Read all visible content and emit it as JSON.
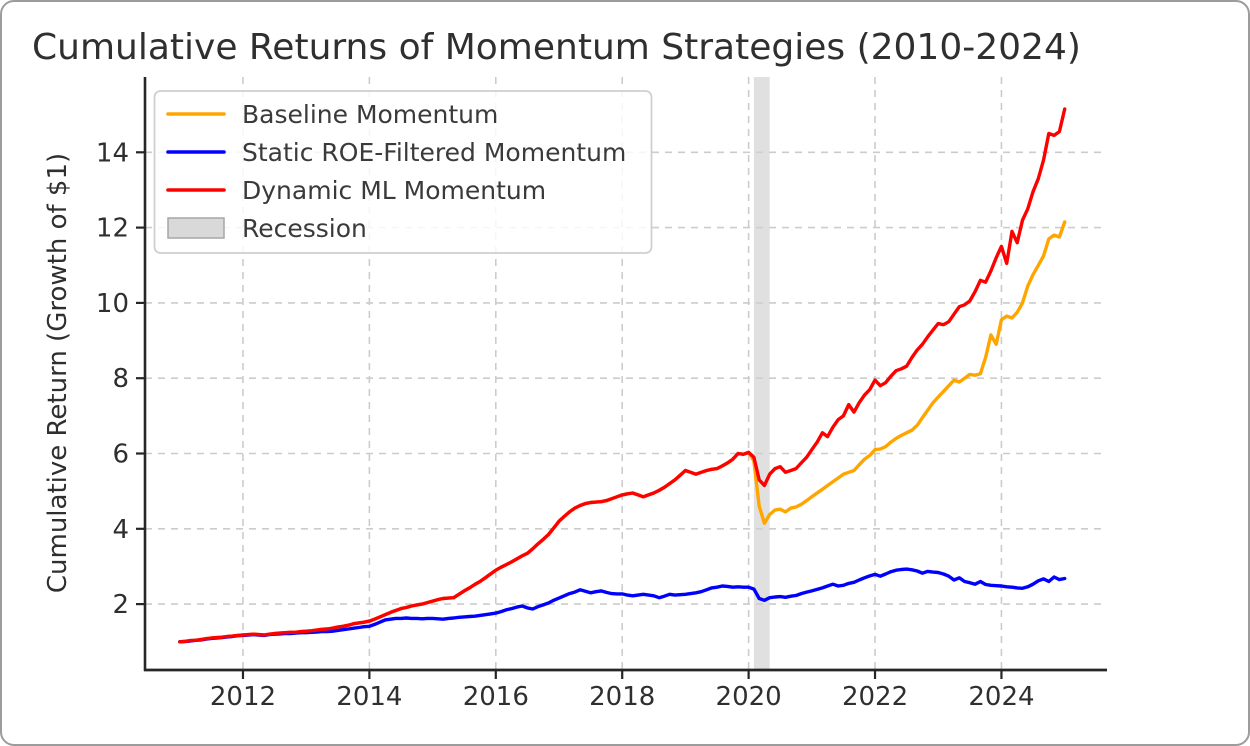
{
  "chart_data": {
    "type": "line",
    "title": "Cumulative Returns of Momentum Strategies (2010-2024)",
    "xlabel": "",
    "ylabel": "Cumulative Return (Growth of $1)",
    "x_unit": "year",
    "x_start": 2011.0,
    "x_step_years": 0.0833333,
    "xlim": [
      2010.45,
      2025.67
    ],
    "ylim": [
      0.25,
      16.0
    ],
    "x_ticks": [
      2012,
      2014,
      2016,
      2018,
      2020,
      2022,
      2024
    ],
    "y_ticks": [
      2,
      4,
      6,
      8,
      10,
      12,
      14
    ],
    "grid": true,
    "grid_style": "dashed",
    "grid_color": "#cccccc",
    "axis_color": "#262626",
    "text_color": "#2f2f2f",
    "legend_position": "upper left",
    "recession_band": {
      "label": "Recession",
      "x_from": 2020.083,
      "x_to": 2020.333,
      "color": "#cfcfcf"
    },
    "legend": [
      {
        "label": "Baseline Momentum",
        "type": "line",
        "color": "#FFA500"
      },
      {
        "label": "Static ROE-Filtered Momentum",
        "type": "line",
        "color": "#0000FF"
      },
      {
        "label": "Dynamic ML Momentum",
        "type": "line",
        "color": "#FF0000"
      },
      {
        "label": "Recession",
        "type": "patch",
        "color": "#d9d9d9",
        "edge_color": "#a6a6a6"
      }
    ],
    "series": [
      {
        "name": "Baseline Momentum",
        "slug": "baseline-momentum",
        "color": "#FFA500",
        "values": [
          1.0,
          1.01,
          1.03,
          1.04,
          1.06,
          1.08,
          1.1,
          1.11,
          1.12,
          1.14,
          1.15,
          1.17,
          1.18,
          1.19,
          1.2,
          1.19,
          1.18,
          1.2,
          1.22,
          1.23,
          1.24,
          1.25,
          1.25,
          1.27,
          1.28,
          1.29,
          1.31,
          1.33,
          1.34,
          1.36,
          1.39,
          1.41,
          1.44,
          1.48,
          1.5,
          1.52,
          1.55,
          1.6,
          1.66,
          1.72,
          1.78,
          1.83,
          1.88,
          1.91,
          1.95,
          1.98,
          2.0,
          2.04,
          2.08,
          2.12,
          2.15,
          2.16,
          2.17,
          2.26,
          2.35,
          2.43,
          2.52,
          2.6,
          2.7,
          2.8,
          2.9,
          2.98,
          3.05,
          3.12,
          3.2,
          3.28,
          3.35,
          3.47,
          3.6,
          3.72,
          3.85,
          4.02,
          4.2,
          4.33,
          4.45,
          4.55,
          4.62,
          4.67,
          4.7,
          4.71,
          4.72,
          4.75,
          4.8,
          4.85,
          4.9,
          4.93,
          4.95,
          4.9,
          4.85,
          4.9,
          4.95,
          5.02,
          5.1,
          5.2,
          5.3,
          5.42,
          5.55,
          5.5,
          5.45,
          5.5,
          5.55,
          5.58,
          5.6,
          5.67,
          5.75,
          5.85,
          6.0,
          5.98,
          6.03,
          5.8,
          4.6,
          4.15,
          4.38,
          4.5,
          4.52,
          4.45,
          4.55,
          4.58,
          4.65,
          4.75,
          4.85,
          4.95,
          5.05,
          5.15,
          5.25,
          5.35,
          5.45,
          5.5,
          5.55,
          5.7,
          5.85,
          5.95,
          6.1,
          6.12,
          6.18,
          6.3,
          6.4,
          6.48,
          6.55,
          6.62,
          6.75,
          6.95,
          7.15,
          7.35,
          7.5,
          7.65,
          7.8,
          7.95,
          7.9,
          8.0,
          8.1,
          8.08,
          8.12,
          8.55,
          9.15,
          8.9,
          9.55,
          9.65,
          9.6,
          9.75,
          10.0,
          10.45,
          10.75,
          11.0,
          11.25,
          11.7,
          11.8,
          11.75,
          12.15
        ]
      },
      {
        "name": "Static ROE-Filtered Momentum",
        "slug": "static-roe-filtered-momentum",
        "color": "#0000FF",
        "values": [
          1.0,
          1.01,
          1.02,
          1.04,
          1.05,
          1.07,
          1.09,
          1.1,
          1.11,
          1.13,
          1.14,
          1.16,
          1.17,
          1.18,
          1.19,
          1.18,
          1.17,
          1.19,
          1.2,
          1.21,
          1.22,
          1.22,
          1.23,
          1.24,
          1.24,
          1.25,
          1.26,
          1.27,
          1.27,
          1.28,
          1.3,
          1.32,
          1.34,
          1.36,
          1.38,
          1.4,
          1.41,
          1.46,
          1.52,
          1.58,
          1.6,
          1.62,
          1.62,
          1.63,
          1.62,
          1.62,
          1.61,
          1.62,
          1.62,
          1.61,
          1.6,
          1.62,
          1.63,
          1.65,
          1.66,
          1.67,
          1.68,
          1.7,
          1.72,
          1.74,
          1.76,
          1.8,
          1.85,
          1.88,
          1.92,
          1.95,
          1.9,
          1.87,
          1.93,
          1.98,
          2.03,
          2.1,
          2.16,
          2.22,
          2.28,
          2.32,
          2.38,
          2.34,
          2.3,
          2.33,
          2.35,
          2.31,
          2.28,
          2.27,
          2.27,
          2.24,
          2.22,
          2.24,
          2.26,
          2.24,
          2.22,
          2.17,
          2.21,
          2.26,
          2.24,
          2.25,
          2.26,
          2.28,
          2.3,
          2.33,
          2.38,
          2.43,
          2.45,
          2.48,
          2.47,
          2.45,
          2.46,
          2.45,
          2.45,
          2.4,
          2.15,
          2.1,
          2.17,
          2.19,
          2.2,
          2.18,
          2.21,
          2.23,
          2.28,
          2.32,
          2.35,
          2.39,
          2.43,
          2.48,
          2.53,
          2.48,
          2.5,
          2.55,
          2.58,
          2.64,
          2.7,
          2.75,
          2.79,
          2.74,
          2.8,
          2.86,
          2.9,
          2.92,
          2.93,
          2.91,
          2.88,
          2.82,
          2.87,
          2.85,
          2.84,
          2.8,
          2.74,
          2.64,
          2.7,
          2.6,
          2.57,
          2.53,
          2.6,
          2.52,
          2.5,
          2.49,
          2.48,
          2.46,
          2.45,
          2.43,
          2.42,
          2.46,
          2.53,
          2.62,
          2.67,
          2.6,
          2.72,
          2.65,
          2.68
        ]
      },
      {
        "name": "Dynamic ML Momentum",
        "slug": "dynamic-ml-momentum",
        "color": "#FF0000",
        "values": [
          1.0,
          1.01,
          1.03,
          1.04,
          1.06,
          1.08,
          1.1,
          1.11,
          1.12,
          1.14,
          1.15,
          1.17,
          1.18,
          1.19,
          1.2,
          1.19,
          1.18,
          1.2,
          1.22,
          1.23,
          1.24,
          1.25,
          1.25,
          1.27,
          1.28,
          1.29,
          1.31,
          1.33,
          1.34,
          1.36,
          1.39,
          1.41,
          1.44,
          1.48,
          1.5,
          1.52,
          1.55,
          1.6,
          1.66,
          1.72,
          1.78,
          1.83,
          1.88,
          1.91,
          1.95,
          1.98,
          2.0,
          2.04,
          2.08,
          2.12,
          2.15,
          2.16,
          2.17,
          2.26,
          2.35,
          2.43,
          2.52,
          2.6,
          2.7,
          2.8,
          2.9,
          2.98,
          3.05,
          3.12,
          3.2,
          3.28,
          3.35,
          3.47,
          3.6,
          3.72,
          3.85,
          4.02,
          4.2,
          4.33,
          4.45,
          4.55,
          4.62,
          4.67,
          4.7,
          4.71,
          4.72,
          4.75,
          4.8,
          4.85,
          4.9,
          4.93,
          4.95,
          4.9,
          4.85,
          4.9,
          4.95,
          5.02,
          5.1,
          5.2,
          5.3,
          5.42,
          5.55,
          5.5,
          5.45,
          5.5,
          5.55,
          5.58,
          5.6,
          5.67,
          5.75,
          5.85,
          6.0,
          5.98,
          6.03,
          5.9,
          5.3,
          5.15,
          5.45,
          5.6,
          5.65,
          5.5,
          5.55,
          5.6,
          5.75,
          5.9,
          6.1,
          6.3,
          6.55,
          6.45,
          6.7,
          6.9,
          7.0,
          7.3,
          7.1,
          7.35,
          7.55,
          7.7,
          7.95,
          7.8,
          7.88,
          8.05,
          8.2,
          8.25,
          8.32,
          8.55,
          8.75,
          8.9,
          9.1,
          9.28,
          9.45,
          9.42,
          9.5,
          9.7,
          9.9,
          9.95,
          10.05,
          10.3,
          10.6,
          10.55,
          10.85,
          11.2,
          11.5,
          11.05,
          11.9,
          11.6,
          12.2,
          12.5,
          12.95,
          13.3,
          13.8,
          14.5,
          14.45,
          14.55,
          15.15
        ]
      }
    ]
  }
}
